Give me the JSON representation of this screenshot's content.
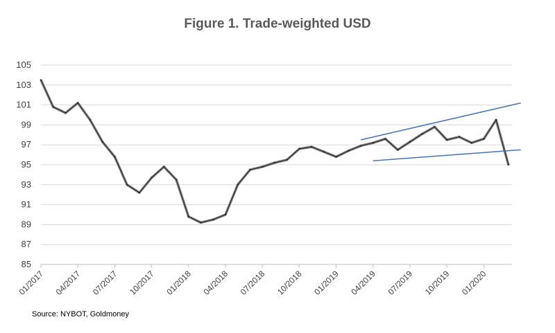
{
  "chart_data": {
    "type": "line",
    "title": "Figure 1. Trade-weighted USD",
    "source": "Source: NYBOT, Goldmoney",
    "xlabel": "",
    "ylabel": "",
    "ylim": [
      85,
      105
    ],
    "yticks": [
      85,
      87,
      89,
      91,
      93,
      95,
      97,
      99,
      101,
      103,
      105
    ],
    "x_tick_labels": [
      "01/2017",
      "04/2017",
      "07/2017",
      "10/2017",
      "01/2018",
      "04/2018",
      "07/2018",
      "10/2018",
      "01/2019",
      "04/2019",
      "07/2019",
      "10/2019",
      "01/2020"
    ],
    "grid": "horizontal",
    "series": [
      {
        "color": "#7f7f7f",
        "x": [
          "2017-01",
          "2017-02",
          "2017-03",
          "2017-04",
          "2017-05",
          "2017-06",
          "2017-07",
          "2017-08",
          "2017-09",
          "2017-10",
          "2017-11",
          "2017-12",
          "2018-01",
          "2018-02",
          "2018-03",
          "2018-04",
          "2018-05",
          "2018-06",
          "2018-07",
          "2018-08",
          "2018-09",
          "2018-10",
          "2018-11",
          "2018-12",
          "2019-01",
          "2019-02",
          "2019-03",
          "2019-04",
          "2019-05",
          "2019-06",
          "2019-07",
          "2019-08",
          "2019-09",
          "2019-10",
          "2019-11",
          "2019-12",
          "2020-01",
          "2020-02",
          "2020-03"
        ],
        "values": [
          103.5,
          100.8,
          100.2,
          101.2,
          99.5,
          97.3,
          95.8,
          93.0,
          92.2,
          93.7,
          94.8,
          93.5,
          89.8,
          89.2,
          89.5,
          90.0,
          93.0,
          94.5,
          94.8,
          95.2,
          95.5,
          96.6,
          96.8,
          96.3,
          95.8,
          96.4,
          96.9,
          97.2,
          97.6,
          96.5,
          97.3,
          98.1,
          98.8,
          97.5,
          97.8,
          97.2,
          97.6,
          99.5,
          95.0
        ]
      }
    ],
    "trendlines": [
      {
        "color": "#4472c4",
        "x": [
          "2019-03",
          "2020-04"
        ],
        "values": [
          97.5,
          101.2
        ]
      },
      {
        "color": "#4472c4",
        "x": [
          "2019-04",
          "2020-04"
        ],
        "values": [
          95.4,
          96.5
        ]
      }
    ]
  }
}
